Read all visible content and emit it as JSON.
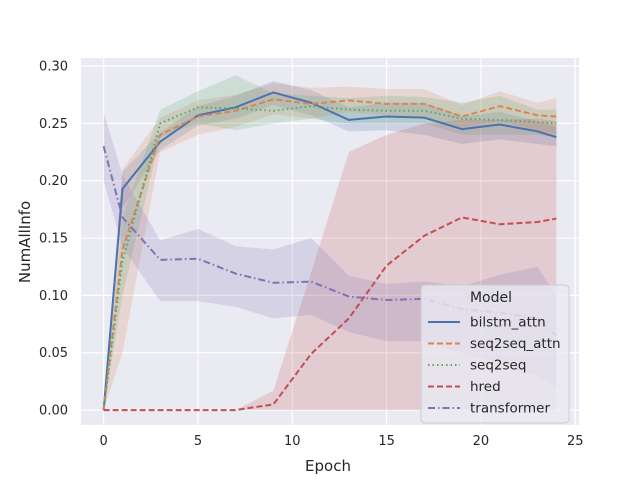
{
  "chart_data": {
    "type": "line",
    "title": "",
    "xlabel": "Epoch",
    "ylabel": "NumAllInfo",
    "xlim": [
      -1.2,
      25.2
    ],
    "ylim": [
      -0.013,
      0.307
    ],
    "xticks": [
      0,
      5,
      10,
      15,
      20,
      25
    ],
    "yticks": [
      0.0,
      0.05,
      0.1,
      0.15,
      0.2,
      0.25,
      0.3
    ],
    "xtick_labels": [
      "0",
      "5",
      "10",
      "15",
      "20",
      "25"
    ],
    "ytick_labels": [
      "0.00",
      "0.05",
      "0.10",
      "0.15",
      "0.20",
      "0.25",
      "0.30"
    ],
    "grid": true,
    "legend": {
      "title": "Model",
      "position": "lower-right"
    },
    "series": [
      {
        "name": "bilstm_attn",
        "color": "#4c72b0",
        "dash": "solid",
        "x": [
          0,
          1,
          3,
          5,
          7,
          9,
          11,
          13,
          15,
          17,
          19,
          21,
          23,
          24
        ],
        "y": [
          0.0,
          0.193,
          0.234,
          0.257,
          0.264,
          0.277,
          0.268,
          0.253,
          0.256,
          0.255,
          0.245,
          0.249,
          0.243,
          0.238
        ],
        "lower": [
          0.0,
          0.176,
          0.227,
          0.248,
          0.254,
          0.266,
          0.257,
          0.243,
          0.244,
          0.24,
          0.232,
          0.236,
          0.232,
          0.23
        ],
        "upper": [
          0.0,
          0.208,
          0.242,
          0.265,
          0.274,
          0.287,
          0.279,
          0.264,
          0.268,
          0.268,
          0.256,
          0.26,
          0.252,
          0.247
        ]
      },
      {
        "name": "seq2seq_attn",
        "color": "#dd8452",
        "dash": "dashed",
        "x": [
          0,
          1,
          3,
          5,
          7,
          9,
          11,
          13,
          15,
          17,
          19,
          21,
          23,
          24
        ],
        "y": [
          0.0,
          0.14,
          0.24,
          0.256,
          0.261,
          0.271,
          0.267,
          0.27,
          0.267,
          0.267,
          0.256,
          0.265,
          0.257,
          0.256
        ],
        "lower": [
          0.0,
          0.05,
          0.225,
          0.24,
          0.247,
          0.258,
          0.254,
          0.26,
          0.257,
          0.255,
          0.247,
          0.252,
          0.244,
          0.241
        ],
        "upper": [
          0.0,
          0.21,
          0.255,
          0.27,
          0.275,
          0.285,
          0.281,
          0.282,
          0.28,
          0.28,
          0.266,
          0.278,
          0.268,
          0.272
        ]
      },
      {
        "name": "seq2seq",
        "color": "#55a868",
        "dash": "dotted",
        "x": [
          0,
          1,
          3,
          5,
          7,
          9,
          11,
          13,
          15,
          17,
          19,
          21,
          23,
          24
        ],
        "y": [
          0.0,
          0.13,
          0.25,
          0.264,
          0.263,
          0.261,
          0.265,
          0.262,
          0.261,
          0.261,
          0.254,
          0.253,
          0.251,
          0.25
        ],
        "lower": [
          0.0,
          0.1,
          0.238,
          0.25,
          0.244,
          0.25,
          0.254,
          0.25,
          0.25,
          0.25,
          0.24,
          0.24,
          0.24,
          0.238
        ],
        "upper": [
          0.0,
          0.168,
          0.262,
          0.278,
          0.292,
          0.276,
          0.274,
          0.272,
          0.274,
          0.273,
          0.268,
          0.274,
          0.262,
          0.262
        ]
      },
      {
        "name": "hred",
        "color": "#c44e52",
        "dash": "dashed",
        "x": [
          0,
          1,
          3,
          5,
          7,
          9,
          11,
          13,
          15,
          17,
          19,
          21,
          23,
          24
        ],
        "y": [
          0.0,
          0.0,
          0.0,
          0.0,
          0.0,
          0.005,
          0.049,
          0.08,
          0.126,
          0.152,
          0.168,
          0.162,
          0.164,
          0.167
        ],
        "lower": [
          0.0,
          0.0,
          0.0,
          0.0,
          0.0,
          0.0,
          0.0,
          0.0,
          0.0,
          0.0,
          0.0,
          0.0,
          0.0,
          0.0
        ],
        "upper": [
          0.0,
          0.0,
          0.0,
          0.0,
          0.0,
          0.017,
          0.12,
          0.225,
          0.24,
          0.25,
          0.253,
          0.253,
          0.254,
          0.252
        ]
      },
      {
        "name": "transformer",
        "color": "#8172b3",
        "dash": "dashdot",
        "x": [
          0,
          1,
          3,
          5,
          7,
          9,
          11,
          13,
          15,
          17,
          19,
          21,
          23,
          24
        ],
        "y": [
          0.23,
          0.168,
          0.131,
          0.132,
          0.119,
          0.111,
          0.112,
          0.099,
          0.096,
          0.097,
          0.088,
          0.085,
          0.08,
          0.065
        ],
        "lower": [
          0.2,
          0.142,
          0.095,
          0.095,
          0.09,
          0.08,
          0.083,
          0.068,
          0.06,
          0.06,
          0.05,
          0.04,
          0.03,
          0.02
        ],
        "upper": [
          0.26,
          0.205,
          0.148,
          0.158,
          0.143,
          0.14,
          0.15,
          0.117,
          0.11,
          0.112,
          0.108,
          0.118,
          0.125,
          0.1
        ]
      }
    ]
  }
}
